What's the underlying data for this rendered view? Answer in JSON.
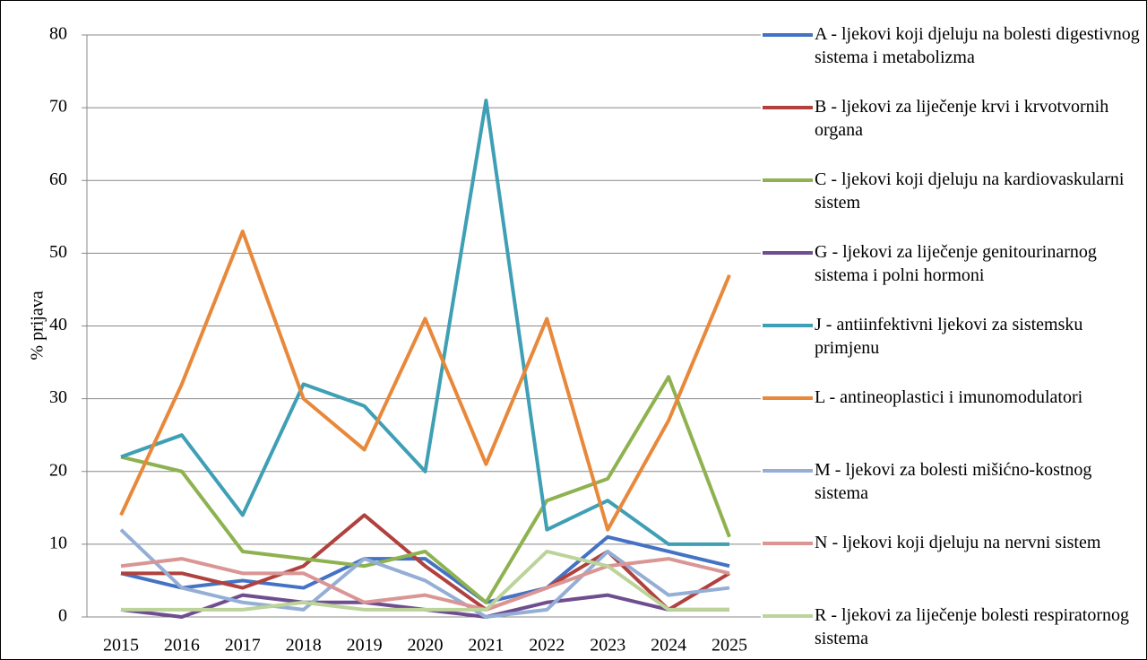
{
  "chart_data": {
    "type": "line",
    "y_label": "% prijava",
    "categories": [
      "2015",
      "2016",
      "2017",
      "2018",
      "2019",
      "2020",
      "2021",
      "2022",
      "2023",
      "2024",
      "2025"
    ],
    "ylim": [
      0,
      80
    ],
    "yticks": [
      0,
      10,
      20,
      30,
      40,
      50,
      60,
      70,
      80
    ],
    "grid": true,
    "legend": "right",
    "series": [
      {
        "name": "A - ljekovi koji djeluju na bolesti digestivnog sistema i metabolizma",
        "color": "#4472c4",
        "values": [
          6,
          4,
          5,
          4,
          8,
          8,
          2,
          4,
          11,
          9,
          7
        ]
      },
      {
        "name": "B - ljekovi za liječenje krvi i krvotvornih organa",
        "color": "#b0413e",
        "values": [
          6,
          6,
          4,
          7,
          14,
          7,
          1,
          4,
          9,
          1,
          6
        ]
      },
      {
        "name": "C - ljekovi koji djeluju na kardiovaskularni sistem",
        "color": "#8db24f",
        "values": [
          22,
          20,
          9,
          8,
          7,
          9,
          2,
          16,
          19,
          33,
          11
        ]
      },
      {
        "name": "G - ljekovi za liječenje genitourinarnog sistema i polni hormoni",
        "color": "#6f4e8f",
        "values": [
          1,
          0,
          3,
          2,
          2,
          1,
          0,
          2,
          3,
          1,
          1
        ]
      },
      {
        "name": "J - antiinfektivni ljekovi za sistemsku primjenu",
        "color": "#3e9fb5",
        "values": [
          22,
          25,
          14,
          32,
          29,
          20,
          71,
          12,
          16,
          10,
          10
        ]
      },
      {
        "name": "L - antineoplastici i imunomodulatori",
        "color": "#e8883a",
        "values": [
          14,
          32,
          53,
          30,
          23,
          41,
          21,
          41,
          12,
          27,
          47
        ]
      },
      {
        "name": "M - ljekovi za bolesti mišićno-kostnog sistema",
        "color": "#94aed6",
        "values": [
          12,
          4,
          2,
          1,
          8,
          5,
          0,
          1,
          9,
          3,
          4
        ]
      },
      {
        "name": "N - ljekovi koji djeluju na nervni sistem",
        "color": "#d99694",
        "values": [
          7,
          8,
          6,
          6,
          2,
          3,
          1,
          4,
          7,
          8,
          6
        ]
      },
      {
        "name": "R - ljekovi za liječenje bolesti respiratornog sistema",
        "color": "#bcd39a",
        "values": [
          1,
          1,
          1,
          2,
          1,
          1,
          1,
          9,
          7,
          1,
          1
        ]
      }
    ]
  }
}
